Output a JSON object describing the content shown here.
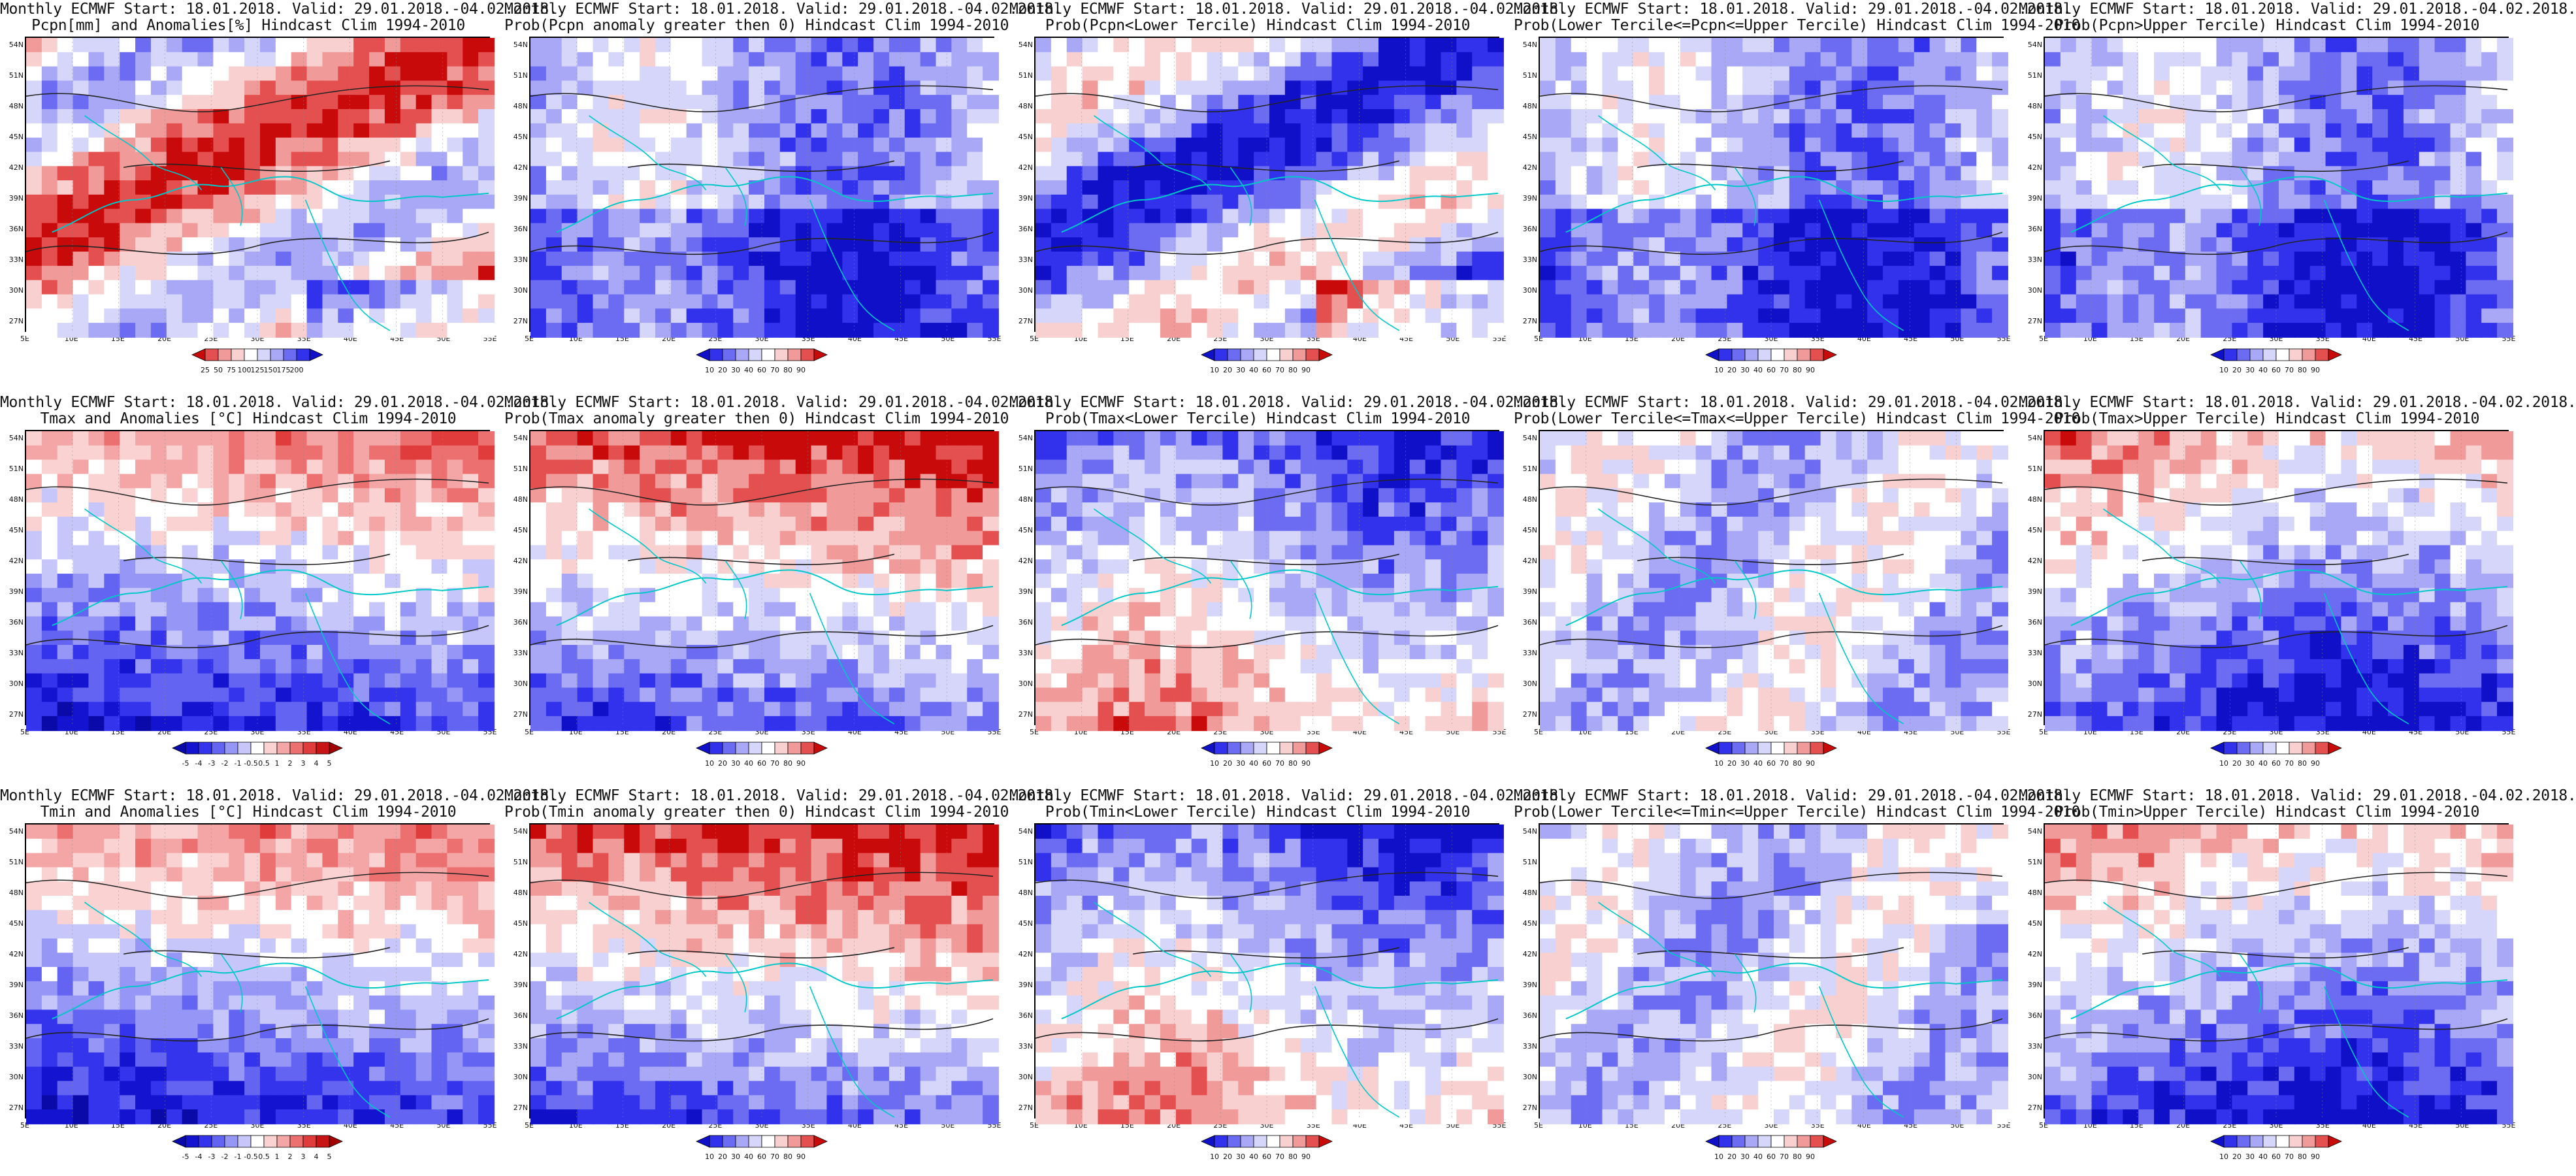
{
  "panels": [
    {
      "line1": "Monthly ECMWF Start: 18.01.2018. Valid: 29.01.2018.-04.02.2018.",
      "line2": "Pcpn[mm] and Anomalies[%] Hindcast Clim 1994-2010",
      "scale": "pcpn_anom",
      "theme": "mixed",
      "seed": 11
    },
    {
      "line1": "Monthly ECMWF Start: 18.01.2018. Valid: 29.01.2018.-04.02.2018.",
      "line2": "Prob(Pcpn anomaly greater then 0) Hindcast Clim 1994-2010",
      "scale": "prob",
      "theme": "blue",
      "seed": 12
    },
    {
      "line1": "Monthly ECMWF Start: 18.01.2018. Valid: 29.01.2018.-04.02.2018.",
      "line2": "Prob(Pcpn<Lower Tercile) Hindcast Clim 1994-2010",
      "scale": "prob",
      "theme": "mixed",
      "seed": 13
    },
    {
      "line1": "Monthly ECMWF Start: 18.01.2018. Valid: 29.01.2018.-04.02.2018.",
      "line2": "Prob(Lower Tercile<=Pcpn<=Upper Tercile) Hindcast Clim 1994-2010",
      "scale": "prob",
      "theme": "blue",
      "seed": 14
    },
    {
      "line1": "Monthly ECMWF Start: 18.01.2018. Valid: 29.01.2018.-04.02.2018.",
      "line2": "Prob(Pcpn>Upper Tercile) Hindcast Clim 1994-2010",
      "scale": "prob",
      "theme": "blue",
      "seed": 15
    },
    {
      "line1": "Monthly ECMWF Start: 18.01.2018. Valid: 29.01.2018.-04.02.2018.",
      "line2": "Tmax and Anomalies [°C] Hindcast Clim 1994-2010",
      "scale": "temp_anom",
      "theme": "redtop",
      "seed": 21
    },
    {
      "line1": "Monthly ECMWF Start: 18.01.2018. Valid: 29.01.2018.-04.02.2018.",
      "line2": "Prob(Tmax anomaly greater then 0) Hindcast Clim 1994-2010",
      "scale": "prob",
      "theme": "redtop",
      "seed": 22
    },
    {
      "line1": "Monthly ECMWF Start: 18.01.2018. Valid: 29.01.2018.-04.02.2018.",
      "line2": "Prob(Tmax<Lower Tercile) Hindcast Clim 1994-2010",
      "scale": "prob",
      "theme": "bluetop",
      "seed": 23
    },
    {
      "line1": "Monthly ECMWF Start: 18.01.2018. Valid: 29.01.2018.-04.02.2018.",
      "line2": "Prob(Lower Tercile<=Tmax<=Upper Tercile) Hindcast Clim 1994-2010",
      "scale": "prob",
      "theme": "pale",
      "seed": 24
    },
    {
      "line1": "Monthly ECMWF Start: 18.01.2018. Valid: 29.01.2018.-04.02.2018.",
      "line2": "Prob(Tmax>Upper Tercile) Hindcast Clim 1994-2010",
      "scale": "prob",
      "theme": "bluebottom",
      "seed": 25
    },
    {
      "line1": "Monthly ECMWF Start: 18.01.2018. Valid: 29.01.2018.-04.02.2018.",
      "line2": "Tmin and Anomalies [°C] Hindcast Clim 1994-2010",
      "scale": "temp_anom",
      "theme": "redtop",
      "seed": 31
    },
    {
      "line1": "Monthly ECMWF Start: 18.01.2018. Valid: 29.01.2018.-04.02.2018.",
      "line2": "Prob(Tmin anomaly greater then 0) Hindcast Clim 1994-2010",
      "scale": "prob",
      "theme": "redtop",
      "seed": 32
    },
    {
      "line1": "Monthly ECMWF Start: 18.01.2018. Valid: 29.01.2018.-04.02.2018.",
      "line2": "Prob(Tmin<Lower Tercile) Hindcast Clim 1994-2010",
      "scale": "prob",
      "theme": "bluetop",
      "seed": 33
    },
    {
      "line1": "Monthly ECMWF Start: 18.01.2018. Valid: 29.01.2018.-04.02.2018.",
      "line2": "Prob(Lower Tercile<=Tmin<=Upper Tercile) Hindcast Clim 1994-2010",
      "scale": "prob",
      "theme": "pale",
      "seed": 34
    },
    {
      "line1": "Monthly ECMWF Start: 18.01.2018. Valid: 29.01.2018.-04.02.2018.",
      "line2": "Prob(Tmin>Upper Tercile) Hindcast Clim 1994-2010",
      "scale": "prob",
      "theme": "bluebottom",
      "seed": 35
    }
  ],
  "lat_labels": [
    "54N",
    "51N",
    "48N",
    "45N",
    "42N",
    "39N",
    "36N",
    "33N",
    "30N",
    "27N"
  ],
  "lon_labels": [
    "5E",
    "10E",
    "15E",
    "20E",
    "25E",
    "30E",
    "35E",
    "40E",
    "45E",
    "50E",
    "55E"
  ],
  "scales": {
    "prob": {
      "labels": [
        "10",
        "20",
        "30",
        "40",
        "60",
        "70",
        "80",
        "90"
      ],
      "colors": [
        "#1010c8",
        "#3232ec",
        "#6c6cf2",
        "#a8a8f6",
        "#d6d6fa",
        "#ffffff",
        "#f8d0d0",
        "#f09a9a",
        "#e45050",
        "#c80a0a"
      ]
    },
    "temp_anom": {
      "labels": [
        "-5",
        "-4",
        "-3",
        "-2",
        "-1",
        "-0.5",
        "0.5",
        "1",
        "2",
        "3",
        "4",
        "5"
      ],
      "colors": [
        "#0a0aa8",
        "#1414d0",
        "#3434ec",
        "#6464f2",
        "#9696f6",
        "#c6c6fa",
        "#ffffff",
        "#fad2d2",
        "#f4a6a6",
        "#ec7070",
        "#e03c3c",
        "#c81414",
        "#a00000"
      ]
    },
    "pcpn_anom": {
      "labels": [
        "25",
        "50",
        "75",
        "100",
        "125",
        "150",
        "175",
        "200"
      ],
      "colors": [
        "#c80a0a",
        "#e45050",
        "#f09a9a",
        "#f8d0d0",
        "#ffffff",
        "#d6d6fa",
        "#a8a8f6",
        "#6c6cf2",
        "#3232ec",
        "#1010c8"
      ]
    }
  }
}
